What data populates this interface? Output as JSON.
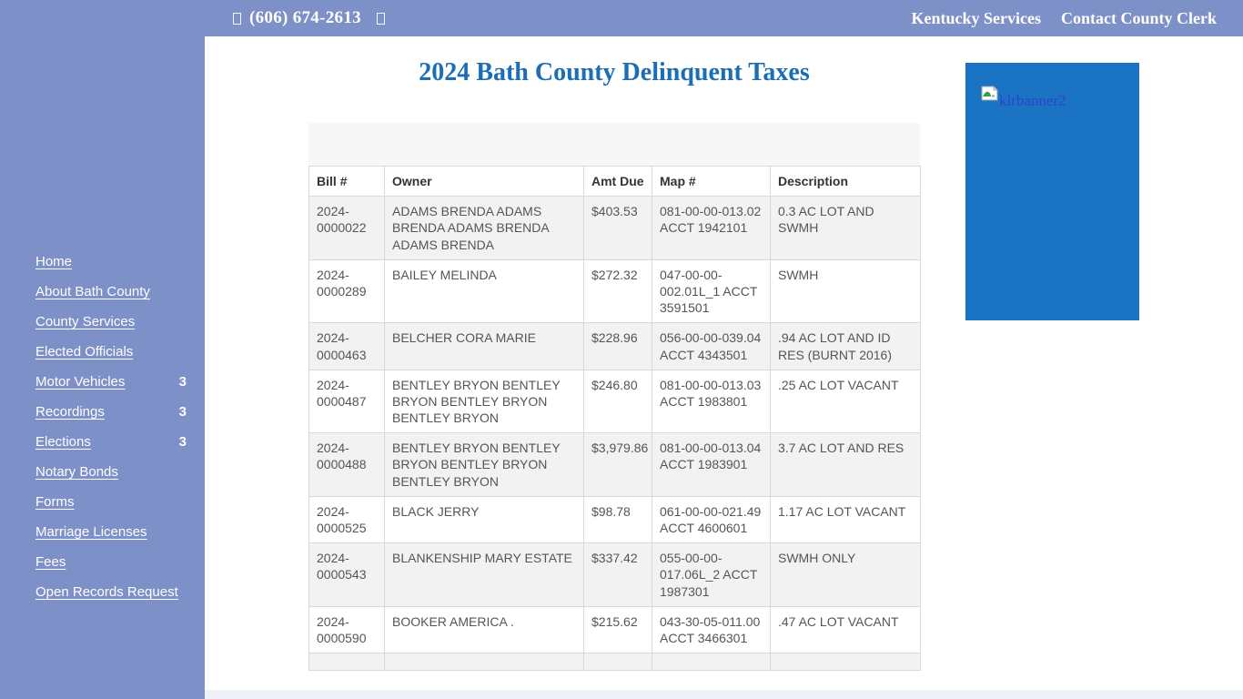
{
  "topbar": {
    "phone": "(606) 674-2613",
    "phone_icon": "phone-glyph-missing",
    "extra_icon": "glyph-missing",
    "links": [
      {
        "label": "Kentucky Services"
      },
      {
        "label": "Contact County Clerk"
      }
    ]
  },
  "sidebar": {
    "items": [
      {
        "label": "Home",
        "badge": ""
      },
      {
        "label": "About Bath County",
        "badge": ""
      },
      {
        "label": "County Services",
        "badge": ""
      },
      {
        "label": "Elected Officials",
        "badge": ""
      },
      {
        "label": "Motor Vehicles",
        "badge": "3"
      },
      {
        "label": "Recordings",
        "badge": "3"
      },
      {
        "label": "Elections",
        "badge": "3"
      },
      {
        "label": "Notary Bonds",
        "badge": ""
      },
      {
        "label": "Forms",
        "badge": ""
      },
      {
        "label": "Marriage Licenses",
        "badge": ""
      },
      {
        "label": "Fees",
        "badge": ""
      },
      {
        "label": "Open Records Request",
        "badge": ""
      }
    ]
  },
  "main": {
    "title": "2024 Bath County Delinquent Taxes",
    "table": {
      "headers": [
        "Bill #",
        "Owner",
        "Amt Due",
        "Map #",
        "Description"
      ],
      "rows": [
        [
          "2024-0000022",
          "ADAMS BRENDA ADAMS BRENDA ADAMS BRENDA ADAMS BRENDA",
          "$403.53",
          "081-00-00-013.02 ACCT 1942101",
          "0.3 AC LOT AND SWMH"
        ],
        [
          "2024-0000289",
          "BAILEY MELINDA",
          "$272.32",
          "047-00-00-002.01L_1 ACCT 3591501",
          "SWMH"
        ],
        [
          "2024-0000463",
          "BELCHER CORA MARIE",
          "$228.96",
          "056-00-00-039.04 ACCT 4343501",
          ".94 AC LOT AND ID RES (BURNT 2016)"
        ],
        [
          "2024-0000487",
          "BENTLEY BRYON BENTLEY BRYON BENTLEY BRYON BENTLEY BRYON",
          "$246.80",
          "081-00-00-013.03 ACCT 1983801",
          ".25 AC LOT VACANT"
        ],
        [
          "2024-0000488",
          "BENTLEY BRYON BENTLEY BRYON BENTLEY BRYON BENTLEY BRYON",
          "$3,979.86",
          "081-00-00-013.04 ACCT 1983901",
          "3.7 AC LOT AND RES"
        ],
        [
          "2024-0000525",
          "BLACK JERRY",
          "$98.78",
          "061-00-00-021.49 ACCT 4600601",
          "1.17 AC LOT VACANT"
        ],
        [
          "2024-0000543",
          "BLANKENSHIP MARY ESTATE",
          "$337.42",
          "055-00-00-017.06L_2 ACCT 1987301",
          "SWMH ONLY"
        ],
        [
          "2024-0000590",
          "BOOKER AMERICA .",
          "$215.62",
          "043-30-05-011.00 ACCT 3466301",
          ".47 AC LOT VACANT"
        ]
      ]
    },
    "banner": {
      "alt": "klrbanner2"
    }
  },
  "colors": {
    "sidebar_bg": "#7e90c8",
    "topbar_bg": "#7e90c8",
    "title_blue": "#1b6eb5",
    "banner_bg": "#1b73c4",
    "banner_alt_text": "#2b45cc",
    "table_border": "#d9d9d9",
    "row_stripe": "#f2f2f2",
    "toolbar_bg": "#f7f7f7",
    "footer_strip": "#eef2f8"
  }
}
